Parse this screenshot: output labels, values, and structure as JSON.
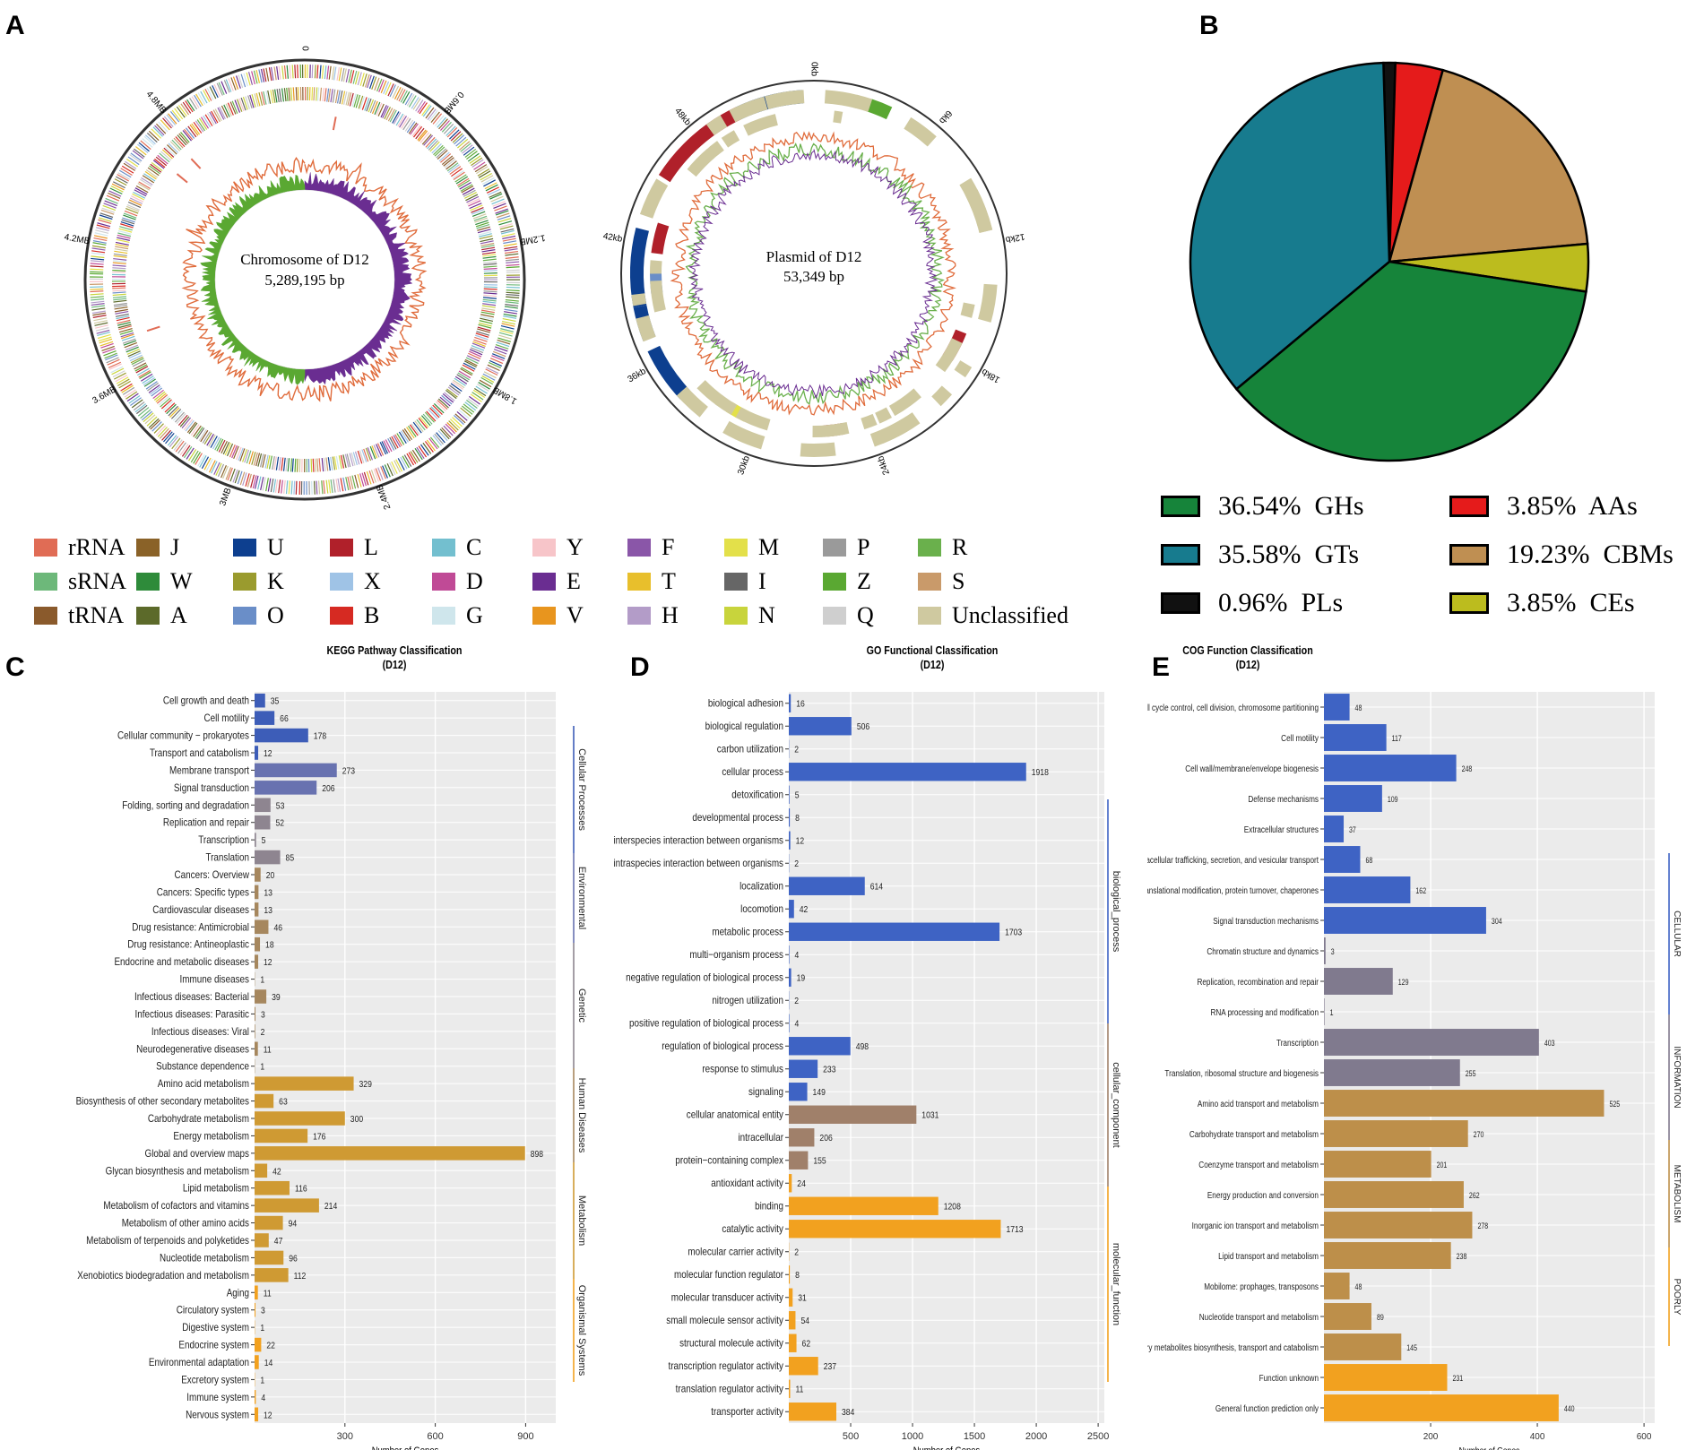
{
  "panels": {
    "a": "A",
    "b": "B",
    "c": "C",
    "d": "D",
    "e": "E"
  },
  "chromosome": {
    "title": "Chromosome of D12",
    "size": "5,289,195 bp",
    "ticks": [
      "0",
      "0.6MB",
      "1.2MB",
      "1.8MB",
      "2.4MB",
      "3MB",
      "3.6MB",
      "4.2MB",
      "4.8MB"
    ]
  },
  "plasmid": {
    "title": "Plasmid of D12",
    "size": "53,349 bp",
    "ticks": [
      "0kb",
      "6kb",
      "12kb",
      "18kb",
      "24kb",
      "30kb",
      "36kb",
      "42kb",
      "48kb"
    ]
  },
  "cog_legend": [
    {
      "label": "rRNA",
      "color": "#e06c55"
    },
    {
      "label": "J",
      "color": "#8a6228"
    },
    {
      "label": "U",
      "color": "#0d3f8f"
    },
    {
      "label": "L",
      "color": "#b0202a"
    },
    {
      "label": "C",
      "color": "#73bfcf"
    },
    {
      "label": "Y",
      "color": "#f7c5c9"
    },
    {
      "label": "F",
      "color": "#8a56a8"
    },
    {
      "label": "M",
      "color": "#e3e04a"
    },
    {
      "label": "P",
      "color": "#9a9a9a"
    },
    {
      "label": "R",
      "color": "#6ab04c"
    },
    {
      "label": "sRNA",
      "color": "#6db87a"
    },
    {
      "label": "W",
      "color": "#2e8b3a"
    },
    {
      "label": "K",
      "color": "#9a9b2e"
    },
    {
      "label": "X",
      "color": "#9fc3e6"
    },
    {
      "label": "D",
      "color": "#c04a96"
    },
    {
      "label": "E",
      "color": "#6a2d91"
    },
    {
      "label": "T",
      "color": "#e8bf2c"
    },
    {
      "label": "I",
      "color": "#666666"
    },
    {
      "label": "Z",
      "color": "#5aa832"
    },
    {
      "label": "S",
      "color": "#c99a6a"
    },
    {
      "label": "tRNA",
      "color": "#8a5a2c"
    },
    {
      "label": "A",
      "color": "#5c6a2a"
    },
    {
      "label": "O",
      "color": "#6a8ec8"
    },
    {
      "label": "B",
      "color": "#d62a22"
    },
    {
      "label": "G",
      "color": "#cfe6ec"
    },
    {
      "label": "V",
      "color": "#e8951e"
    },
    {
      "label": "H",
      "color": "#b39cc8"
    },
    {
      "label": "N",
      "color": "#c8d43c"
    },
    {
      "label": "Q",
      "color": "#cfcfcf"
    },
    {
      "label": "Unclassified",
      "color": "#cfc9a0"
    }
  ],
  "chart_data": [
    {
      "type": "pie",
      "labels": [
        "GHs",
        "GTs",
        "PLs",
        "AAs",
        "CBMs",
        "CEs"
      ],
      "values": [
        36.54,
        35.58,
        0.96,
        3.85,
        19.23,
        3.85
      ],
      "legend_labels": [
        "36.54%  GHs",
        "35.58%  GTs",
        "0.96%  PLs",
        "3.85%  AAs",
        "19.23%  CBMs",
        "3.85%  CEs"
      ],
      "colors": [
        "#16843a",
        "#177b8e",
        "#111111",
        "#e51b1b",
        "#bf8f52",
        "#bcbc1e"
      ]
    },
    {
      "type": "bar",
      "title": "KEGG Pathway Classification",
      "subtitle": "(D12)",
      "xlabel": "Number of Genes",
      "xlim": [
        0,
        1000
      ],
      "xticks": [
        300,
        600,
        900
      ],
      "categories": [
        "Cell growth and death",
        "Cell motility",
        "Cellular community − prokaryotes",
        "Transport and catabolism",
        "Membrane transport",
        "Signal transduction",
        "Folding, sorting and degradation",
        "Replication and repair",
        "Transcription",
        "Translation",
        "Cancers: Overview",
        "Cancers: Specific types",
        "Cardiovascular diseases",
        "Drug resistance: Antimicrobial",
        "Drug resistance: Antineoplastic",
        "Endocrine and metabolic diseases",
        "Immune diseases",
        "Infectious diseases: Bacterial",
        "Infectious diseases: Parasitic",
        "Infectious diseases: Viral",
        "Neurodegenerative diseases",
        "Substance dependence",
        "Amino acid metabolism",
        "Biosynthesis of other secondary metabolites",
        "Carbohydrate metabolism",
        "Energy metabolism",
        "Global and overview maps",
        "Glycan biosynthesis and metabolism",
        "Lipid metabolism",
        "Metabolism of cofactors and vitamins",
        "Metabolism of other amino acids",
        "Metabolism of terpenoids and polyketides",
        "Nucleotide metabolism",
        "Xenobiotics biodegradation and metabolism",
        "Aging",
        "Circulatory system",
        "Digestive system",
        "Endocrine system",
        "Environmental adaptation",
        "Excretory system",
        "Immune system",
        "Nervous system"
      ],
      "values": [
        35,
        66,
        178,
        12,
        273,
        206,
        53,
        52,
        5,
        85,
        20,
        13,
        13,
        46,
        18,
        12,
        1,
        39,
        3,
        2,
        11,
        1,
        329,
        63,
        300,
        176,
        898,
        42,
        116,
        214,
        94,
        47,
        96,
        112,
        11,
        3,
        1,
        22,
        14,
        1,
        4,
        12
      ],
      "groups": [
        0,
        0,
        0,
        0,
        1,
        1,
        2,
        2,
        2,
        2,
        3,
        3,
        3,
        3,
        3,
        3,
        3,
        3,
        3,
        3,
        3,
        3,
        4,
        4,
        4,
        4,
        4,
        4,
        4,
        4,
        4,
        4,
        4,
        4,
        5,
        5,
        5,
        5,
        5,
        5,
        5,
        5
      ],
      "group_colors": [
        "#3d5db8",
        "#6872b0",
        "#8e8590",
        "#a6875e",
        "#cf9a33",
        "#f2a11f"
      ],
      "facets": [
        "Cellular Processes",
        "Environmental",
        "Genetic",
        "Human Diseases",
        "Metabolism",
        "Organismal Systems"
      ]
    },
    {
      "type": "bar",
      "title": "GO Functional Classification",
      "subtitle": "(D12)",
      "xlabel": "Number of Genes",
      "xlim": [
        0,
        2550
      ],
      "xticks": [
        500,
        1000,
        1500,
        2000,
        2500
      ],
      "categories": [
        "biological adhesion",
        "biological regulation",
        "carbon utilization",
        "cellular process",
        "detoxification",
        "developmental process",
        "interspecies interaction between organisms",
        "intraspecies interaction between organisms",
        "localization",
        "locomotion",
        "metabolic process",
        "multi−organism process",
        "negative regulation of biological process",
        "nitrogen utilization",
        "positive regulation of biological process",
        "regulation of biological process",
        "response to stimulus",
        "signaling",
        "cellular anatomical entity",
        "intracellular",
        "protein−containing complex",
        "antioxidant activity",
        "binding",
        "catalytic activity",
        "molecular carrier activity",
        "molecular function regulator",
        "molecular transducer activity",
        "small molecule sensor activity",
        "structural molecule activity",
        "transcription regulator activity",
        "translation regulator activity",
        "transporter activity"
      ],
      "values": [
        16,
        506,
        2,
        1918,
        5,
        8,
        12,
        2,
        614,
        42,
        1703,
        4,
        19,
        2,
        4,
        498,
        233,
        149,
        1031,
        206,
        155,
        24,
        1208,
        1713,
        2,
        8,
        31,
        54,
        62,
        237,
        11,
        384
      ],
      "groups": [
        0,
        0,
        0,
        0,
        0,
        0,
        0,
        0,
        0,
        0,
        0,
        0,
        0,
        0,
        0,
        0,
        0,
        0,
        1,
        1,
        1,
        2,
        2,
        2,
        2,
        2,
        2,
        2,
        2,
        2,
        2,
        2
      ],
      "group_colors": [
        "#3e63c4",
        "#a0806a",
        "#f2a11f"
      ],
      "facets": [
        "biological_process",
        "cellular_component",
        "molecular_function"
      ]
    },
    {
      "type": "bar",
      "title": "COG Function Classification",
      "subtitle": "(D12)",
      "xlabel": "Number of Genes",
      "xlim": [
        0,
        620
      ],
      "xticks": [
        200,
        400,
        600
      ],
      "categories": [
        "Call cycle control, cell division, chromosome partitioning",
        "Cell motility",
        "Cell wall/membrane/envelope biogenesis",
        "Defense mechanisms",
        "Extracellular structures",
        "Intracellular trafficking, secretion, and vesicular transport",
        "Posttranslational modification, protein turnover, chaperones",
        "Signal transduction mechanisms",
        "Chromatin structure and dynamics",
        "Replication, recombination and repair",
        "RNA processing and modification",
        "Transcription",
        "Translation, ribosomal structure and biogenesis",
        "Amino acid transport and metabolism",
        "Carbohydrate transport and metabolism",
        "Coenzyme transport and metabolism",
        "Energy production and conversion",
        "Inorganic ion transport and metabolism",
        "Lipid transport and metabolism",
        "Mobilome: prophages, transposons",
        "Nucleotide transport and metabolism",
        "Secondary metabolites biosynthesis, transport and catabolism",
        "Function unknown",
        "General function prediction only"
      ],
      "values": [
        48,
        117,
        248,
        109,
        37,
        68,
        162,
        304,
        3,
        129,
        1,
        403,
        255,
        525,
        270,
        201,
        262,
        278,
        238,
        48,
        89,
        145,
        231,
        440
      ],
      "groups": [
        0,
        0,
        0,
        0,
        0,
        0,
        0,
        0,
        1,
        1,
        1,
        1,
        1,
        2,
        2,
        2,
        2,
        2,
        2,
        2,
        2,
        2,
        3,
        3
      ],
      "group_colors": [
        "#3e63c4",
        "#807a8e",
        "#bd8f4a",
        "#f2a11f"
      ],
      "facets": [
        "CELLULAR",
        "INFORMATION",
        "METABOLISM",
        "POORLY"
      ]
    }
  ]
}
